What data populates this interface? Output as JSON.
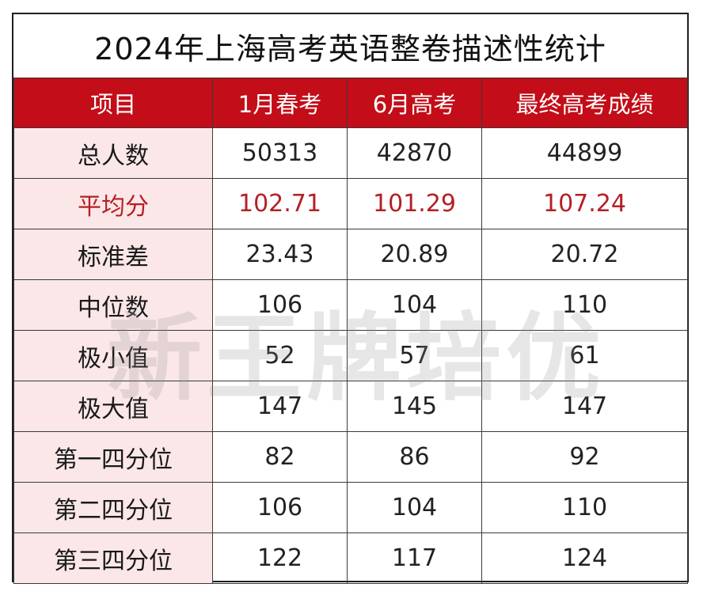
{
  "title": "2024年上海高考英语整卷描述性统计",
  "watermark": "新王牌培优",
  "colors": {
    "header_bg": "#c30d18",
    "label_bg": "#fbe7e8",
    "highlight_text": "#b51f26"
  },
  "table": {
    "headers": [
      "项目",
      "1月春考",
      "6月高考",
      "最终高考成绩"
    ],
    "rows": [
      {
        "label": "总人数",
        "values": [
          "50313",
          "42870",
          "44899"
        ]
      },
      {
        "label": "平均分",
        "values": [
          "102.71",
          "101.29",
          "107.24"
        ]
      },
      {
        "label": "标准差",
        "values": [
          "23.43",
          "20.89",
          "20.72"
        ]
      },
      {
        "label": "中位数",
        "values": [
          "106",
          "104",
          "110"
        ]
      },
      {
        "label": "极小值",
        "values": [
          "52",
          "57",
          "61"
        ]
      },
      {
        "label": "极大值",
        "values": [
          "147",
          "145",
          "147"
        ]
      },
      {
        "label": "第一四分位",
        "values": [
          "82",
          "86",
          "92"
        ]
      },
      {
        "label": "第二四分位",
        "values": [
          "106",
          "104",
          "110"
        ]
      },
      {
        "label": "第三四分位",
        "values": [
          "122",
          "117",
          "124"
        ]
      }
    ]
  }
}
